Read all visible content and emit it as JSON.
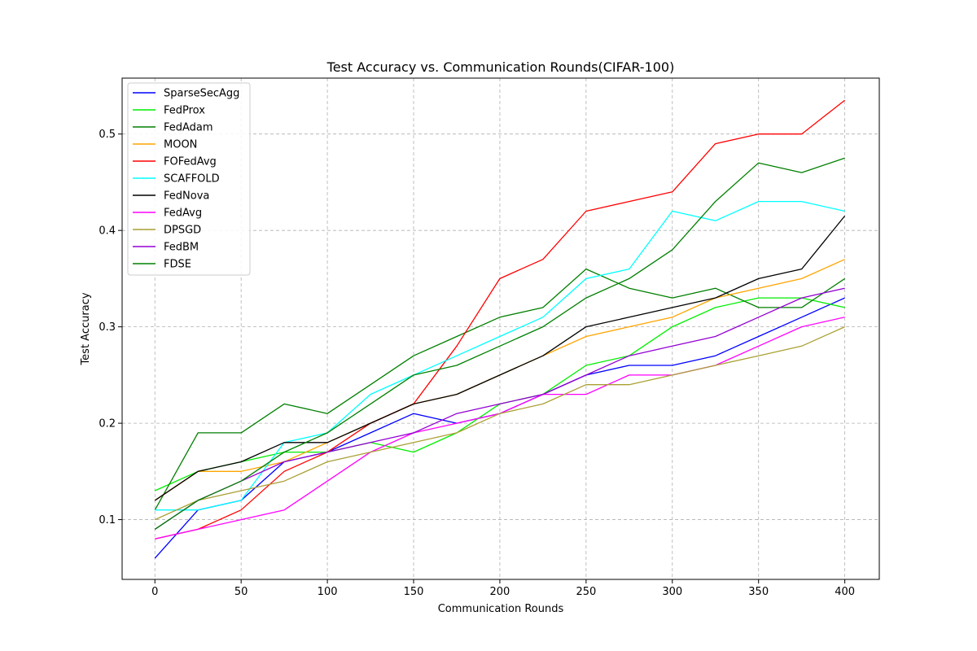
{
  "chart_data": {
    "type": "line",
    "title": "Test Accuracy vs. Communication Rounds(CIFAR-100)",
    "xlabel": "Communication Rounds",
    "ylabel": "Test Accuracy",
    "xlim": [
      -19,
      420
    ],
    "ylim": [
      0.038,
      0.558
    ],
    "xticks": [
      0,
      50,
      100,
      150,
      200,
      250,
      300,
      350,
      400
    ],
    "yticks": [
      0.1,
      0.2,
      0.3,
      0.4,
      0.5
    ],
    "ytick_labels": [
      "0.1",
      "0.2",
      "0.3",
      "0.4",
      "0.5"
    ],
    "grid": true,
    "legend_position": "top-left",
    "x": [
      0,
      25,
      50,
      75,
      100,
      125,
      150,
      175,
      200,
      225,
      250,
      275,
      300,
      325,
      350,
      375,
      400
    ],
    "series": [
      {
        "name": "SparseSecAgg",
        "color": "#0000ff",
        "values": [
          0.06,
          0.11,
          0.12,
          0.16,
          0.17,
          0.19,
          0.21,
          0.2,
          0.21,
          0.23,
          0.25,
          0.26,
          0.26,
          0.27,
          0.29,
          0.31,
          0.33
        ]
      },
      {
        "name": "FedProx",
        "color": "#00ee00",
        "values": [
          0.13,
          0.15,
          0.16,
          0.17,
          0.17,
          0.18,
          0.17,
          0.19,
          0.22,
          0.23,
          0.26,
          0.27,
          0.3,
          0.32,
          0.33,
          0.33,
          0.32
        ]
      },
      {
        "name": "FedAdam",
        "color": "#007f00",
        "values": [
          0.11,
          0.19,
          0.19,
          0.22,
          0.21,
          0.24,
          0.27,
          0.29,
          0.31,
          0.32,
          0.36,
          0.34,
          0.33,
          0.34,
          0.32,
          0.32,
          0.35
        ]
      },
      {
        "name": "MOON",
        "color": "#ffa500",
        "values": [
          0.12,
          0.15,
          0.15,
          0.16,
          0.18,
          0.2,
          0.22,
          0.23,
          0.25,
          0.27,
          0.29,
          0.3,
          0.31,
          0.33,
          0.34,
          0.35,
          0.37
        ]
      },
      {
        "name": "FOFedAvg",
        "color": "#ff0000",
        "values": [
          0.08,
          0.09,
          0.11,
          0.15,
          0.17,
          0.2,
          0.22,
          0.28,
          0.35,
          0.37,
          0.42,
          0.43,
          0.44,
          0.49,
          0.5,
          0.5,
          0.535
        ]
      },
      {
        "name": "SCAFFOLD",
        "color": "#00ffff",
        "values": [
          0.11,
          0.11,
          0.12,
          0.18,
          0.19,
          0.23,
          0.25,
          0.27,
          0.29,
          0.31,
          0.35,
          0.36,
          0.42,
          0.41,
          0.43,
          0.43,
          0.42
        ]
      },
      {
        "name": "FedNova",
        "color": "#000000",
        "values": [
          0.12,
          0.15,
          0.16,
          0.18,
          0.18,
          0.2,
          0.22,
          0.23,
          0.25,
          0.27,
          0.3,
          0.31,
          0.32,
          0.33,
          0.35,
          0.36,
          0.415
        ]
      },
      {
        "name": "FedAvg",
        "color": "#ff00ff",
        "values": [
          0.08,
          0.09,
          0.1,
          0.11,
          0.14,
          0.17,
          0.19,
          0.2,
          0.21,
          0.23,
          0.23,
          0.25,
          0.25,
          0.26,
          0.28,
          0.3,
          0.31
        ]
      },
      {
        "name": "DPSGD",
        "color": "#aaa035",
        "values": [
          0.1,
          0.12,
          0.13,
          0.14,
          0.16,
          0.17,
          0.18,
          0.19,
          0.21,
          0.22,
          0.24,
          0.24,
          0.25,
          0.26,
          0.27,
          0.28,
          0.3
        ]
      },
      {
        "name": "FedBM",
        "color": "#9400d3",
        "values": [
          0.09,
          0.12,
          0.14,
          0.16,
          0.17,
          0.18,
          0.19,
          0.21,
          0.22,
          0.23,
          0.25,
          0.27,
          0.28,
          0.29,
          0.31,
          0.33,
          0.34
        ]
      },
      {
        "name": "FDSE",
        "color": "#008000",
        "values": [
          0.09,
          0.12,
          0.14,
          0.17,
          0.19,
          0.22,
          0.25,
          0.26,
          0.28,
          0.3,
          0.33,
          0.35,
          0.38,
          0.43,
          0.47,
          0.46,
          0.475
        ]
      }
    ]
  }
}
